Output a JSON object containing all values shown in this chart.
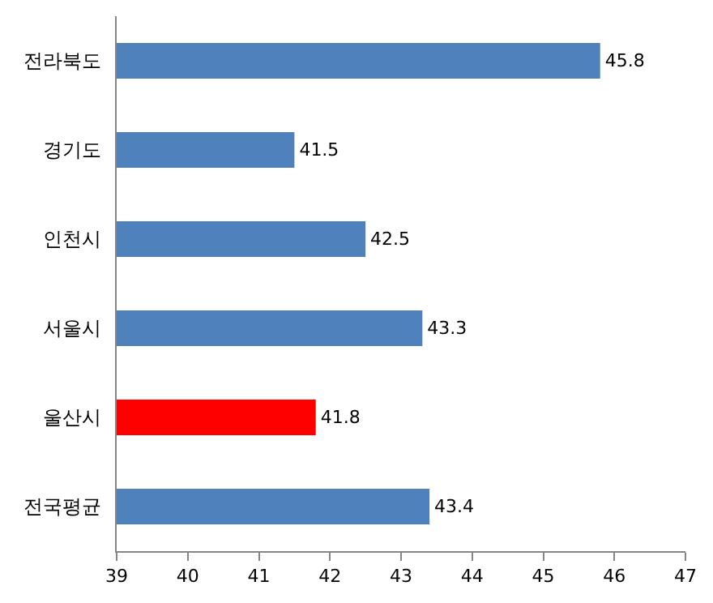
{
  "chart_data": {
    "type": "bar",
    "orientation": "horizontal",
    "categories": [
      "전라북도",
      "경기도",
      "인천시",
      "서울시",
      "울산시",
      "전국평균"
    ],
    "values": [
      45.8,
      41.5,
      42.5,
      43.3,
      41.8,
      43.4
    ],
    "colors": [
      "#4f81bd",
      "#4f81bd",
      "#4f81bd",
      "#4f81bd",
      "#ff0000",
      "#4f81bd"
    ],
    "xlim": [
      39,
      47
    ],
    "xticks": [
      39,
      40,
      41,
      42,
      43,
      44,
      45,
      46,
      47
    ],
    "data_labels": true
  }
}
